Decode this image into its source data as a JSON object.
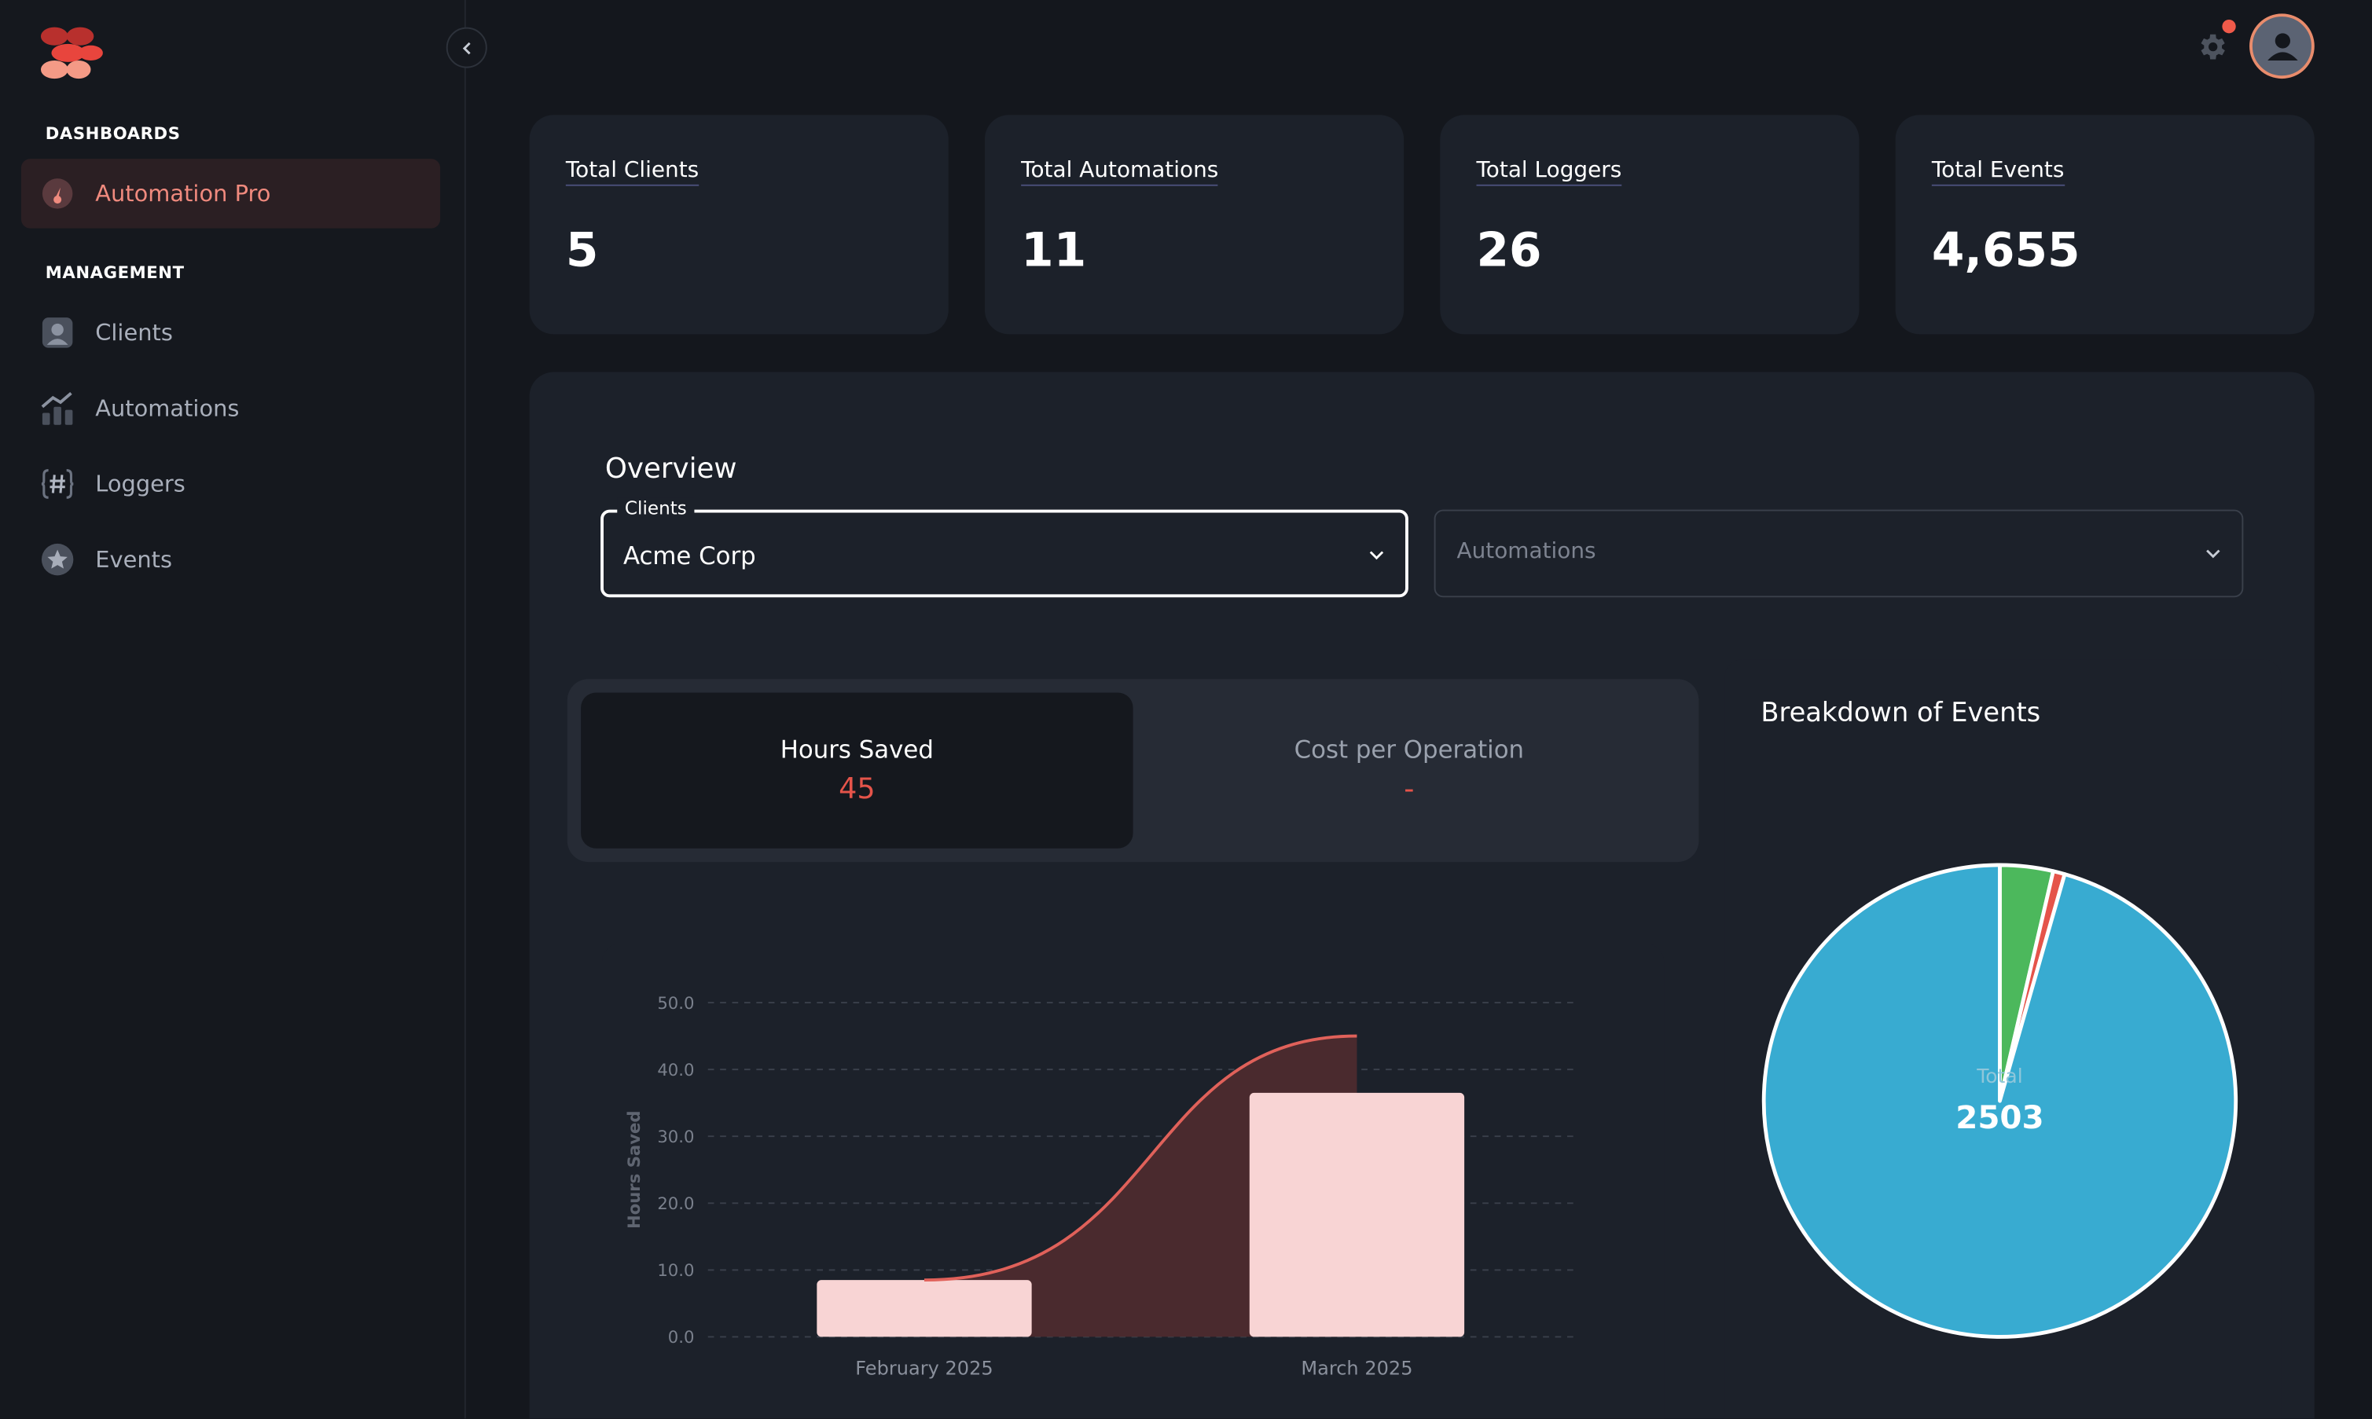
{
  "sidebar": {
    "sections": [
      {
        "title": "DASHBOARDS",
        "items": [
          {
            "label": "Automation Pro",
            "icon": "gauge-icon",
            "active": true
          }
        ]
      },
      {
        "title": "MANAGEMENT",
        "items": [
          {
            "label": "Clients",
            "icon": "client-icon"
          },
          {
            "label": "Automations",
            "icon": "chart-up-icon"
          },
          {
            "label": "Loggers",
            "icon": "hash-icon"
          },
          {
            "label": "Events",
            "icon": "star-icon"
          }
        ]
      }
    ]
  },
  "stats": [
    {
      "label": "Total Clients",
      "value": "5"
    },
    {
      "label": "Total Automations",
      "value": "11"
    },
    {
      "label": "Total Loggers",
      "value": "26"
    },
    {
      "label": "Total Events",
      "value": "4,655"
    }
  ],
  "overview": {
    "title": "Overview",
    "clients_select": {
      "legend": "Clients",
      "value": "Acme Corp"
    },
    "automations_select": {
      "placeholder": "Automations"
    },
    "tabs": [
      {
        "label": "Hours Saved",
        "value": "45"
      },
      {
        "label": "Cost per Operation",
        "value": "-"
      }
    ]
  },
  "colors": {
    "accent": "#f08a7e",
    "bar": "#f8d4d4",
    "line": "#e0615a",
    "area": "#4a2a2e",
    "pie_blue": "#38abd1",
    "pie_green": "#4cb85c",
    "pie_red": "#e5544a"
  },
  "chart_data": [
    {
      "type": "bar",
      "categories": [
        "February 2025",
        "March 2025"
      ],
      "series": [
        {
          "kind": "bar",
          "values": [
            8.5,
            36.5
          ]
        },
        {
          "kind": "line-area",
          "values": [
            8.5,
            45
          ]
        }
      ],
      "ylabel": "Hours Saved",
      "ylim": [
        0,
        50
      ],
      "yticks": [
        "0.0",
        "10.0",
        "20.0",
        "30.0",
        "40.0",
        "50.0"
      ],
      "grid": true
    },
    {
      "type": "pie",
      "title": "Breakdown of Events",
      "center_label": "Total",
      "center_value": "2503",
      "slices": [
        {
          "value": 91,
          "color": "#4cb85c"
        },
        {
          "value": 20,
          "color": "#e5544a"
        },
        {
          "value": 2392,
          "color": "#38abd1"
        }
      ]
    }
  ]
}
